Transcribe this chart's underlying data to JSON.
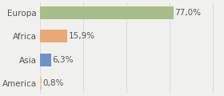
{
  "categories": [
    "America",
    "Asia",
    "Africa",
    "Europa"
  ],
  "values": [
    0.8,
    6.3,
    15.9,
    77.0
  ],
  "labels": [
    "0,8%",
    "6,3%",
    "15,9%",
    "77,0%"
  ],
  "bar_colors": [
    "#e8d090",
    "#7090c8",
    "#e8a878",
    "#a8bc88"
  ],
  "xlim": [
    0,
    105
  ],
  "background_color": "#f0f0ee",
  "label_fontsize": 7.5,
  "tick_fontsize": 7.5,
  "grid_color": "#d8d8d8",
  "text_color": "#555555"
}
